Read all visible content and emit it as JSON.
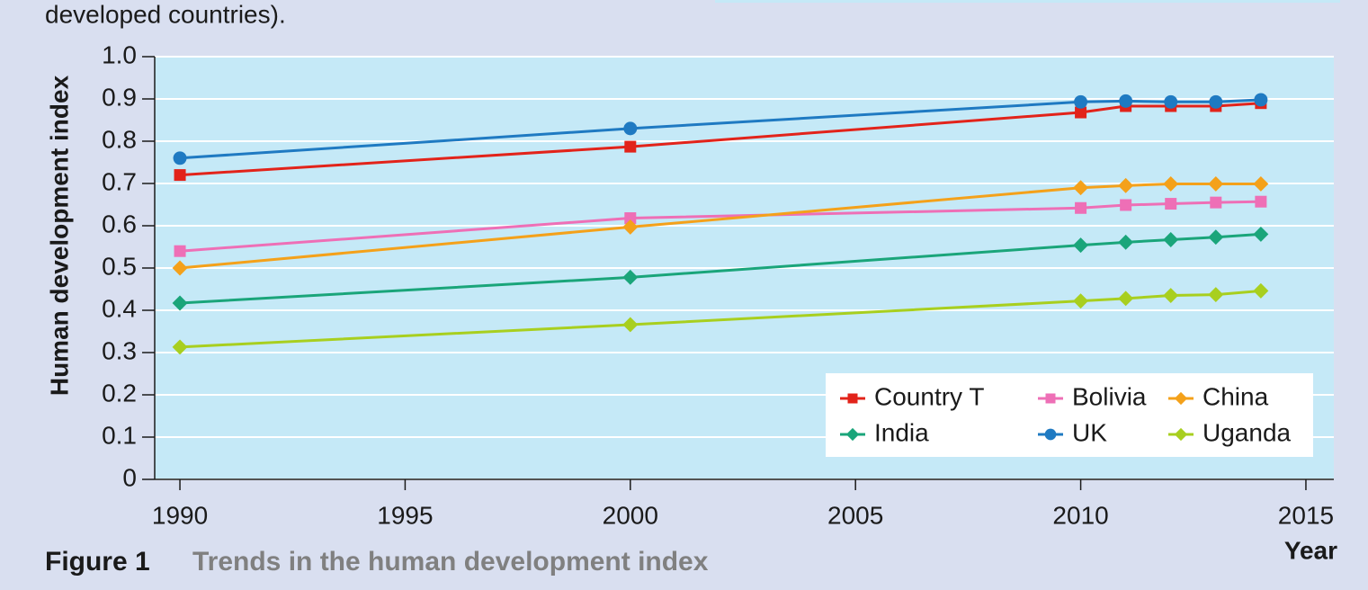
{
  "chart_data": {
    "type": "line",
    "top_text": "developed countries).",
    "caption_label": "Figure 1",
    "title": "Trends in the human development index",
    "xlabel": "Year",
    "ylabel": "Human development index",
    "x": [
      1990,
      2000,
      2010,
      2011,
      2012,
      2013,
      2014
    ],
    "series": [
      {
        "name": "Country T",
        "color": "#e2231a",
        "marker": "square",
        "values": [
          0.72,
          0.787,
          0.868,
          0.883,
          0.883,
          0.883,
          0.89
        ]
      },
      {
        "name": "Bolivia",
        "color": "#ee6fb6",
        "marker": "square",
        "values": [
          0.54,
          0.618,
          0.642,
          0.649,
          0.652,
          0.655,
          0.657
        ]
      },
      {
        "name": "China",
        "color": "#f4a11a",
        "marker": "diamond",
        "values": [
          0.5,
          0.597,
          0.69,
          0.695,
          0.699,
          0.699,
          0.699
        ]
      },
      {
        "name": "India",
        "color": "#1aa57a",
        "marker": "diamond",
        "values": [
          0.417,
          0.478,
          0.554,
          0.561,
          0.567,
          0.573,
          0.58
        ]
      },
      {
        "name": "UK",
        "color": "#1f7ac2",
        "marker": "circle",
        "values": [
          0.76,
          0.83,
          0.893,
          0.895,
          0.893,
          0.893,
          0.898
        ]
      },
      {
        "name": "Uganda",
        "color": "#a8cf1f",
        "marker": "diamond",
        "values": [
          0.313,
          0.366,
          0.422,
          0.428,
          0.435,
          0.437,
          0.446
        ]
      }
    ],
    "xlim": [
      1989.44,
      2015.62
    ],
    "xticks": [
      1990,
      1995,
      2000,
      2005,
      2010,
      2015
    ],
    "ylim": [
      0,
      1
    ],
    "yticks": [
      0,
      0.1,
      0.2,
      0.3,
      0.4,
      0.5,
      0.6,
      0.7,
      0.8,
      0.9,
      {
        "value": 1,
        "label": "1.0"
      }
    ],
    "grid": true,
    "legend": "lower right"
  }
}
